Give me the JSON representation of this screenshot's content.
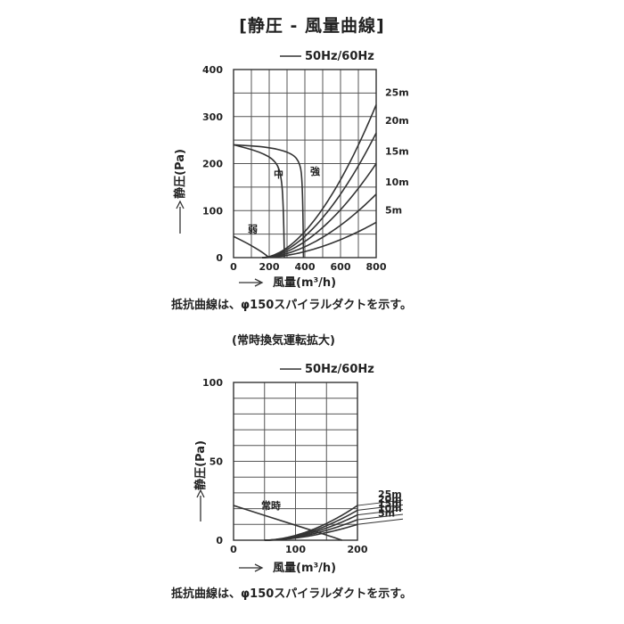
{
  "title": "[静圧 - 風量曲線]",
  "chart_data": [
    {
      "type": "line",
      "legend": "50Hz/60Hz",
      "xlabel": "風量(m³/h)",
      "ylabel": "静圧(Pa)",
      "xlim": [
        0,
        800
      ],
      "ylim": [
        0,
        400
      ],
      "xticks": [
        0,
        200,
        400,
        600,
        800
      ],
      "yticks": [
        0,
        100,
        200,
        300,
        400
      ],
      "xgrid_step": 100,
      "ygrid_step": 50,
      "fan_curves": [
        {
          "name": "強",
          "points": [
            [
              0,
              240
            ],
            [
              200,
              235
            ],
            [
              330,
              222
            ],
            [
              375,
              200
            ],
            [
              385,
              160
            ],
            [
              390,
              80
            ],
            [
              392,
              0
            ]
          ]
        },
        {
          "name": "中",
          "points": [
            [
              0,
              240
            ],
            [
              150,
              225
            ],
            [
              240,
              205
            ],
            [
              270,
              170
            ],
            [
              280,
              100
            ],
            [
              285,
              0
            ]
          ]
        },
        {
          "name": "弱",
          "points": [
            [
              0,
              45
            ],
            [
              80,
              30
            ],
            [
              160,
              12
            ],
            [
              200,
              0
            ]
          ]
        }
      ],
      "resistance_curves": [
        {
          "name": "25m",
          "points": [
            [
              160,
              0
            ],
            [
              800,
              325
            ]
          ]
        },
        {
          "name": "20m",
          "points": [
            [
              160,
              0
            ],
            [
              800,
              265
            ]
          ]
        },
        {
          "name": "15m",
          "points": [
            [
              160,
              0
            ],
            [
              800,
              200
            ]
          ]
        },
        {
          "name": "10m",
          "points": [
            [
              160,
              0
            ],
            [
              800,
              135
            ]
          ]
        },
        {
          "name": "5m",
          "points": [
            [
              160,
              0
            ],
            [
              800,
              75
            ]
          ]
        }
      ],
      "resistance_exponent": 1.8,
      "note": "抵抗曲線は、φ150スパイラルダクトを示す。"
    },
    {
      "type": "line",
      "subtitle": "(常時換気運転拡大)",
      "legend": "50Hz/60Hz",
      "xlabel": "風量(m³/h)",
      "ylabel": "静圧(Pa)",
      "xlim": [
        0,
        200
      ],
      "ylim": [
        0,
        100
      ],
      "xticks": [
        0,
        100,
        200
      ],
      "yticks": [
        0,
        50,
        100
      ],
      "xgrid_step": 50,
      "ygrid_step": 10,
      "fan_curves": [
        {
          "name": "常時",
          "points": [
            [
              0,
              22
            ],
            [
              40,
              17
            ],
            [
              80,
              12
            ],
            [
              120,
              7
            ],
            [
              160,
              2
            ],
            [
              175,
              0
            ]
          ]
        }
      ],
      "resistance_curves": [
        {
          "name": "25m",
          "points": [
            [
              50,
              0
            ],
            [
              200,
              22
            ]
          ]
        },
        {
          "name": "20m",
          "points": [
            [
              50,
              0
            ],
            [
              200,
              19
            ]
          ]
        },
        {
          "name": "15m",
          "points": [
            [
              50,
              0
            ],
            [
              200,
              16
            ]
          ]
        },
        {
          "name": "10m",
          "points": [
            [
              50,
              0
            ],
            [
              200,
              13
            ]
          ]
        },
        {
          "name": "5m",
          "points": [
            [
              50,
              0
            ],
            [
              200,
              10
            ]
          ]
        }
      ],
      "resistance_exponent": 1.8,
      "note": "抵抗曲線は、φ150スパイラルダクトを示す。"
    }
  ]
}
